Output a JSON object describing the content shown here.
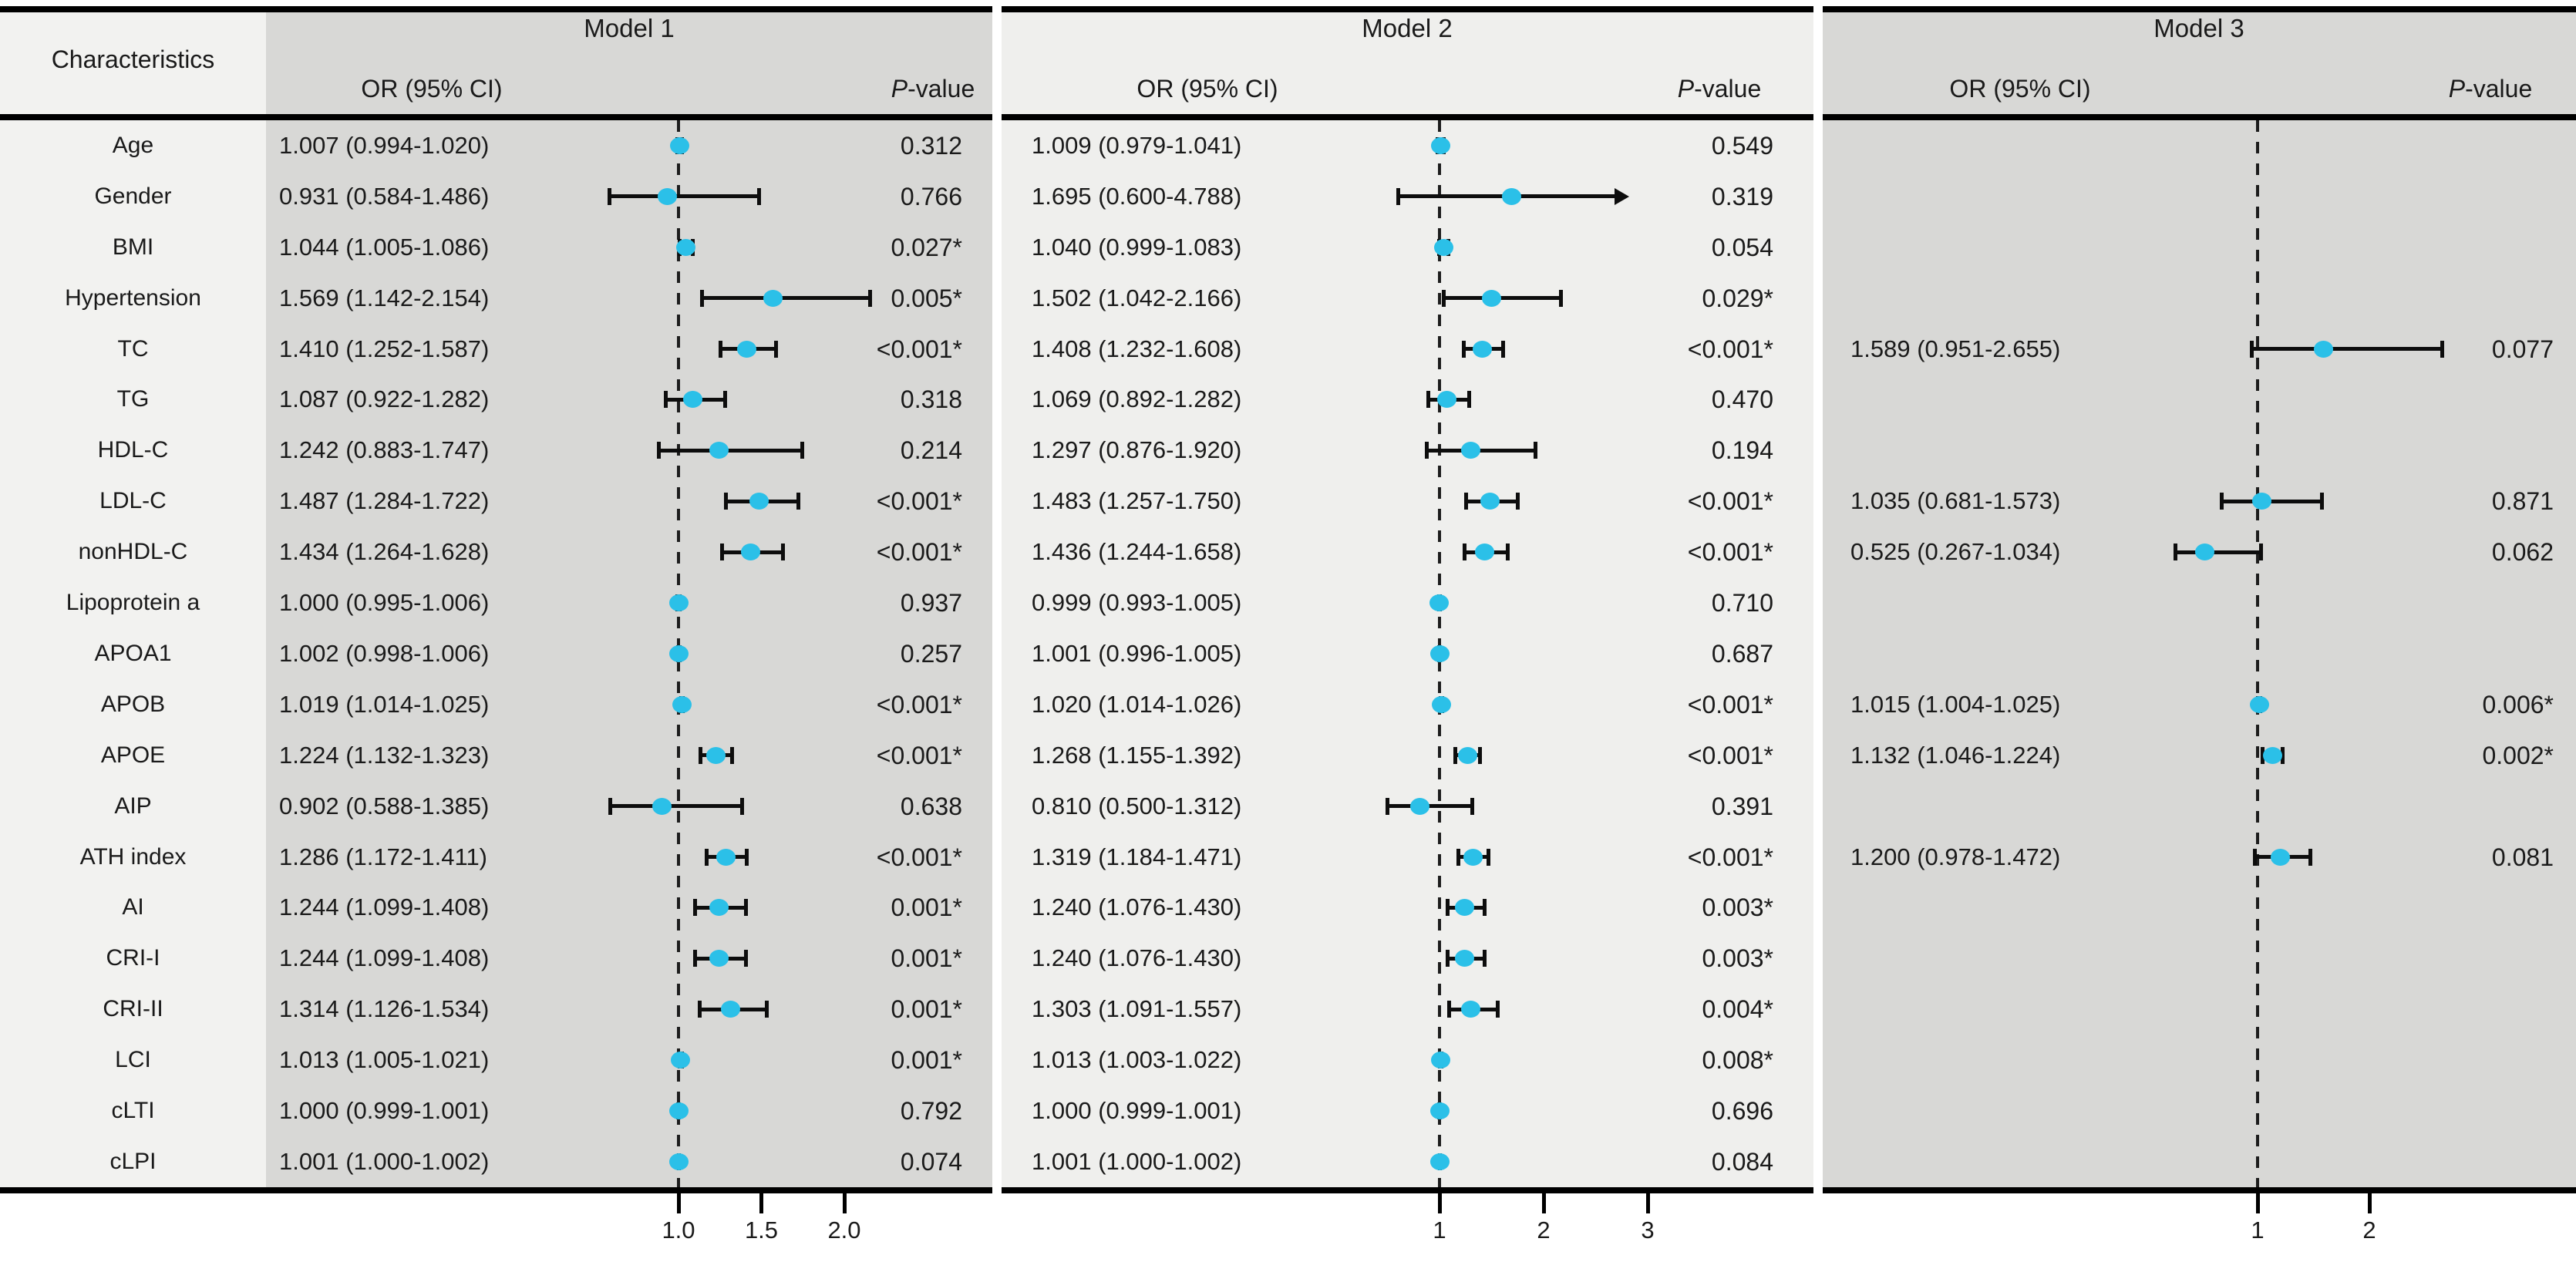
{
  "header": {
    "characteristics": "Characteristics",
    "or_label": "OR (95% CI)",
    "p_prefix": "P",
    "p_suffix": "-value",
    "models": [
      "Model 1",
      "Model 2",
      "Model 3"
    ]
  },
  "colors": {
    "marker": "#2bc0e8",
    "block_dark": "#d8d8d6",
    "block_light": "#efefed",
    "characteristics_bg": "#f2f2f0",
    "line": "#000000"
  },
  "chart_data": {
    "type": "forest",
    "title": "",
    "characteristics": [
      "Age",
      "Gender",
      "BMI",
      "Hypertension",
      "TC",
      "TG",
      "HDL-C",
      "LDL-C",
      "nonHDL-C",
      "Lipoprotein a",
      "APOA1",
      "APOB",
      "APOE",
      "AIP",
      "ATH index",
      "AI",
      "CRI-I",
      "CRI-II",
      "LCI",
      "cLTI",
      "cLPI"
    ],
    "reference_value": 1,
    "models": [
      {
        "name": "Model 1",
        "axis_ticks": [
          {
            "value": 1.0,
            "label": "1.0"
          },
          {
            "value": 1.5,
            "label": "1.5"
          },
          {
            "value": 2.0,
            "label": "2.0"
          }
        ],
        "rows": [
          {
            "or_text": "1.007 (0.994-1.020)",
            "or": 1.007,
            "lo": 0.994,
            "hi": 1.02,
            "p": "0.312"
          },
          {
            "or_text": "0.931 (0.584-1.486)",
            "or": 0.931,
            "lo": 0.584,
            "hi": 1.486,
            "p": "0.766"
          },
          {
            "or_text": "1.044 (1.005-1.086)",
            "or": 1.044,
            "lo": 1.005,
            "hi": 1.086,
            "p": "0.027*"
          },
          {
            "or_text": "1.569 (1.142-2.154)",
            "or": 1.569,
            "lo": 1.142,
            "hi": 2.154,
            "p": "0.005*"
          },
          {
            "or_text": "1.410 (1.252-1.587)",
            "or": 1.41,
            "lo": 1.252,
            "hi": 1.587,
            "p": "<0.001*"
          },
          {
            "or_text": "1.087 (0.922-1.282)",
            "or": 1.087,
            "lo": 0.922,
            "hi": 1.282,
            "p": "0.318"
          },
          {
            "or_text": "1.242 (0.883-1.747)",
            "or": 1.242,
            "lo": 0.883,
            "hi": 1.747,
            "p": "0.214"
          },
          {
            "or_text": "1.487 (1.284-1.722)",
            "or": 1.487,
            "lo": 1.284,
            "hi": 1.722,
            "p": "<0.001*"
          },
          {
            "or_text": "1.434 (1.264-1.628)",
            "or": 1.434,
            "lo": 1.264,
            "hi": 1.628,
            "p": "<0.001*"
          },
          {
            "or_text": "1.000 (0.995-1.006)",
            "or": 1.0,
            "lo": 0.995,
            "hi": 1.006,
            "p": "0.937"
          },
          {
            "or_text": "1.002 (0.998-1.006)",
            "or": 1.002,
            "lo": 0.998,
            "hi": 1.006,
            "p": "0.257"
          },
          {
            "or_text": "1.019 (1.014-1.025)",
            "or": 1.019,
            "lo": 1.014,
            "hi": 1.025,
            "p": "<0.001*"
          },
          {
            "or_text": "1.224 (1.132-1.323)",
            "or": 1.224,
            "lo": 1.132,
            "hi": 1.323,
            "p": "<0.001*"
          },
          {
            "or_text": "0.902 (0.588-1.385)",
            "or": 0.902,
            "lo": 0.588,
            "hi": 1.385,
            "p": "0.638"
          },
          {
            "or_text": "1.286 (1.172-1.411)",
            "or": 1.286,
            "lo": 1.172,
            "hi": 1.411,
            "p": "<0.001*"
          },
          {
            "or_text": "1.244 (1.099-1.408)",
            "or": 1.244,
            "lo": 1.099,
            "hi": 1.408,
            "p": "0.001*"
          },
          {
            "or_text": "1.244 (1.099-1.408)",
            "or": 1.244,
            "lo": 1.099,
            "hi": 1.408,
            "p": "0.001*"
          },
          {
            "or_text": "1.314 (1.126-1.534)",
            "or": 1.314,
            "lo": 1.126,
            "hi": 1.534,
            "p": "0.001*"
          },
          {
            "or_text": "1.013 (1.005-1.021)",
            "or": 1.013,
            "lo": 1.005,
            "hi": 1.021,
            "p": "0.001*"
          },
          {
            "or_text": "1.000 (0.999-1.001)",
            "or": 1.0,
            "lo": 0.999,
            "hi": 1.001,
            "p": "0.792"
          },
          {
            "or_text": "1.001 (1.000-1.002)",
            "or": 1.001,
            "lo": 1.0,
            "hi": 1.002,
            "p": "0.074"
          }
        ]
      },
      {
        "name": "Model 2",
        "axis_ticks": [
          {
            "value": 1,
            "label": "1"
          },
          {
            "value": 2,
            "label": "2"
          },
          {
            "value": 3,
            "label": "3"
          }
        ],
        "rows": [
          {
            "or_text": "1.009 (0.979-1.041)",
            "or": 1.009,
            "lo": 0.979,
            "hi": 1.041,
            "p": "0.549"
          },
          {
            "or_text": "1.695 (0.600-4.788)",
            "or": 1.695,
            "lo": 0.6,
            "hi": 4.788,
            "p": "0.319"
          },
          {
            "or_text": "1.040 (0.999-1.083)",
            "or": 1.04,
            "lo": 0.999,
            "hi": 1.083,
            "p": "0.054"
          },
          {
            "or_text": "1.502 (1.042-2.166)",
            "or": 1.502,
            "lo": 1.042,
            "hi": 2.166,
            "p": "0.029*"
          },
          {
            "or_text": "1.408 (1.232-1.608)",
            "or": 1.408,
            "lo": 1.232,
            "hi": 1.608,
            "p": "<0.001*"
          },
          {
            "or_text": "1.069 (0.892-1.282)",
            "or": 1.069,
            "lo": 0.892,
            "hi": 1.282,
            "p": "0.470"
          },
          {
            "or_text": "1.297 (0.876-1.920)",
            "or": 1.297,
            "lo": 0.876,
            "hi": 1.92,
            "p": "0.194"
          },
          {
            "or_text": "1.483 (1.257-1.750)",
            "or": 1.483,
            "lo": 1.257,
            "hi": 1.75,
            "p": "<0.001*"
          },
          {
            "or_text": "1.436 (1.244-1.658)",
            "or": 1.436,
            "lo": 1.244,
            "hi": 1.658,
            "p": "<0.001*"
          },
          {
            "or_text": "0.999 (0.993-1.005)",
            "or": 0.999,
            "lo": 0.993,
            "hi": 1.005,
            "p": "0.710"
          },
          {
            "or_text": "1.001 (0.996-1.005)",
            "or": 1.001,
            "lo": 0.996,
            "hi": 1.005,
            "p": "0.687"
          },
          {
            "or_text": "1.020 (1.014-1.026)",
            "or": 1.02,
            "lo": 1.014,
            "hi": 1.026,
            "p": "<0.001*"
          },
          {
            "or_text": "1.268 (1.155-1.392)",
            "or": 1.268,
            "lo": 1.155,
            "hi": 1.392,
            "p": "<0.001*"
          },
          {
            "or_text": "0.810 (0.500-1.312)",
            "or": 0.81,
            "lo": 0.5,
            "hi": 1.312,
            "p": "0.391"
          },
          {
            "or_text": "1.319 (1.184-1.471)",
            "or": 1.319,
            "lo": 1.184,
            "hi": 1.471,
            "p": "<0.001*"
          },
          {
            "or_text": "1.240 (1.076-1.430)",
            "or": 1.24,
            "lo": 1.076,
            "hi": 1.43,
            "p": "0.003*"
          },
          {
            "or_text": "1.240 (1.076-1.430)",
            "or": 1.24,
            "lo": 1.076,
            "hi": 1.43,
            "p": "0.003*"
          },
          {
            "or_text": "1.303 (1.091-1.557)",
            "or": 1.303,
            "lo": 1.091,
            "hi": 1.557,
            "p": "0.004*"
          },
          {
            "or_text": "1.013 (1.003-1.022)",
            "or": 1.013,
            "lo": 1.003,
            "hi": 1.022,
            "p": "0.008*"
          },
          {
            "or_text": "1.000 (0.999-1.001)",
            "or": 1.0,
            "lo": 0.999,
            "hi": 1.001,
            "p": "0.696"
          },
          {
            "or_text": "1.001 (1.000-1.002)",
            "or": 1.001,
            "lo": 1.0,
            "hi": 1.002,
            "p": "0.084"
          }
        ]
      },
      {
        "name": "Model 3",
        "axis_ticks": [
          {
            "value": 1,
            "label": "1"
          },
          {
            "value": 2,
            "label": "2"
          }
        ],
        "rows": [
          null,
          null,
          null,
          null,
          {
            "or_text": "1.589 (0.951-2.655)",
            "or": 1.589,
            "lo": 0.951,
            "hi": 2.655,
            "p": "0.077"
          },
          null,
          null,
          {
            "or_text": "1.035 (0.681-1.573)",
            "or": 1.035,
            "lo": 0.681,
            "hi": 1.573,
            "p": "0.871"
          },
          {
            "or_text": "0.525 (0.267-1.034)",
            "or": 0.525,
            "lo": 0.267,
            "hi": 1.034,
            "p": "0.062"
          },
          null,
          null,
          {
            "or_text": "1.015 (1.004-1.025)",
            "or": 1.015,
            "lo": 1.004,
            "hi": 1.025,
            "p": "0.006*"
          },
          {
            "or_text": "1.132 (1.046-1.224)",
            "or": 1.132,
            "lo": 1.046,
            "hi": 1.224,
            "p": "0.002*"
          },
          null,
          {
            "or_text": "1.200 (0.978-1.472)",
            "or": 1.2,
            "lo": 0.978,
            "hi": 1.472,
            "p": "0.081"
          },
          null,
          null,
          null,
          null,
          null,
          null
        ]
      }
    ]
  }
}
